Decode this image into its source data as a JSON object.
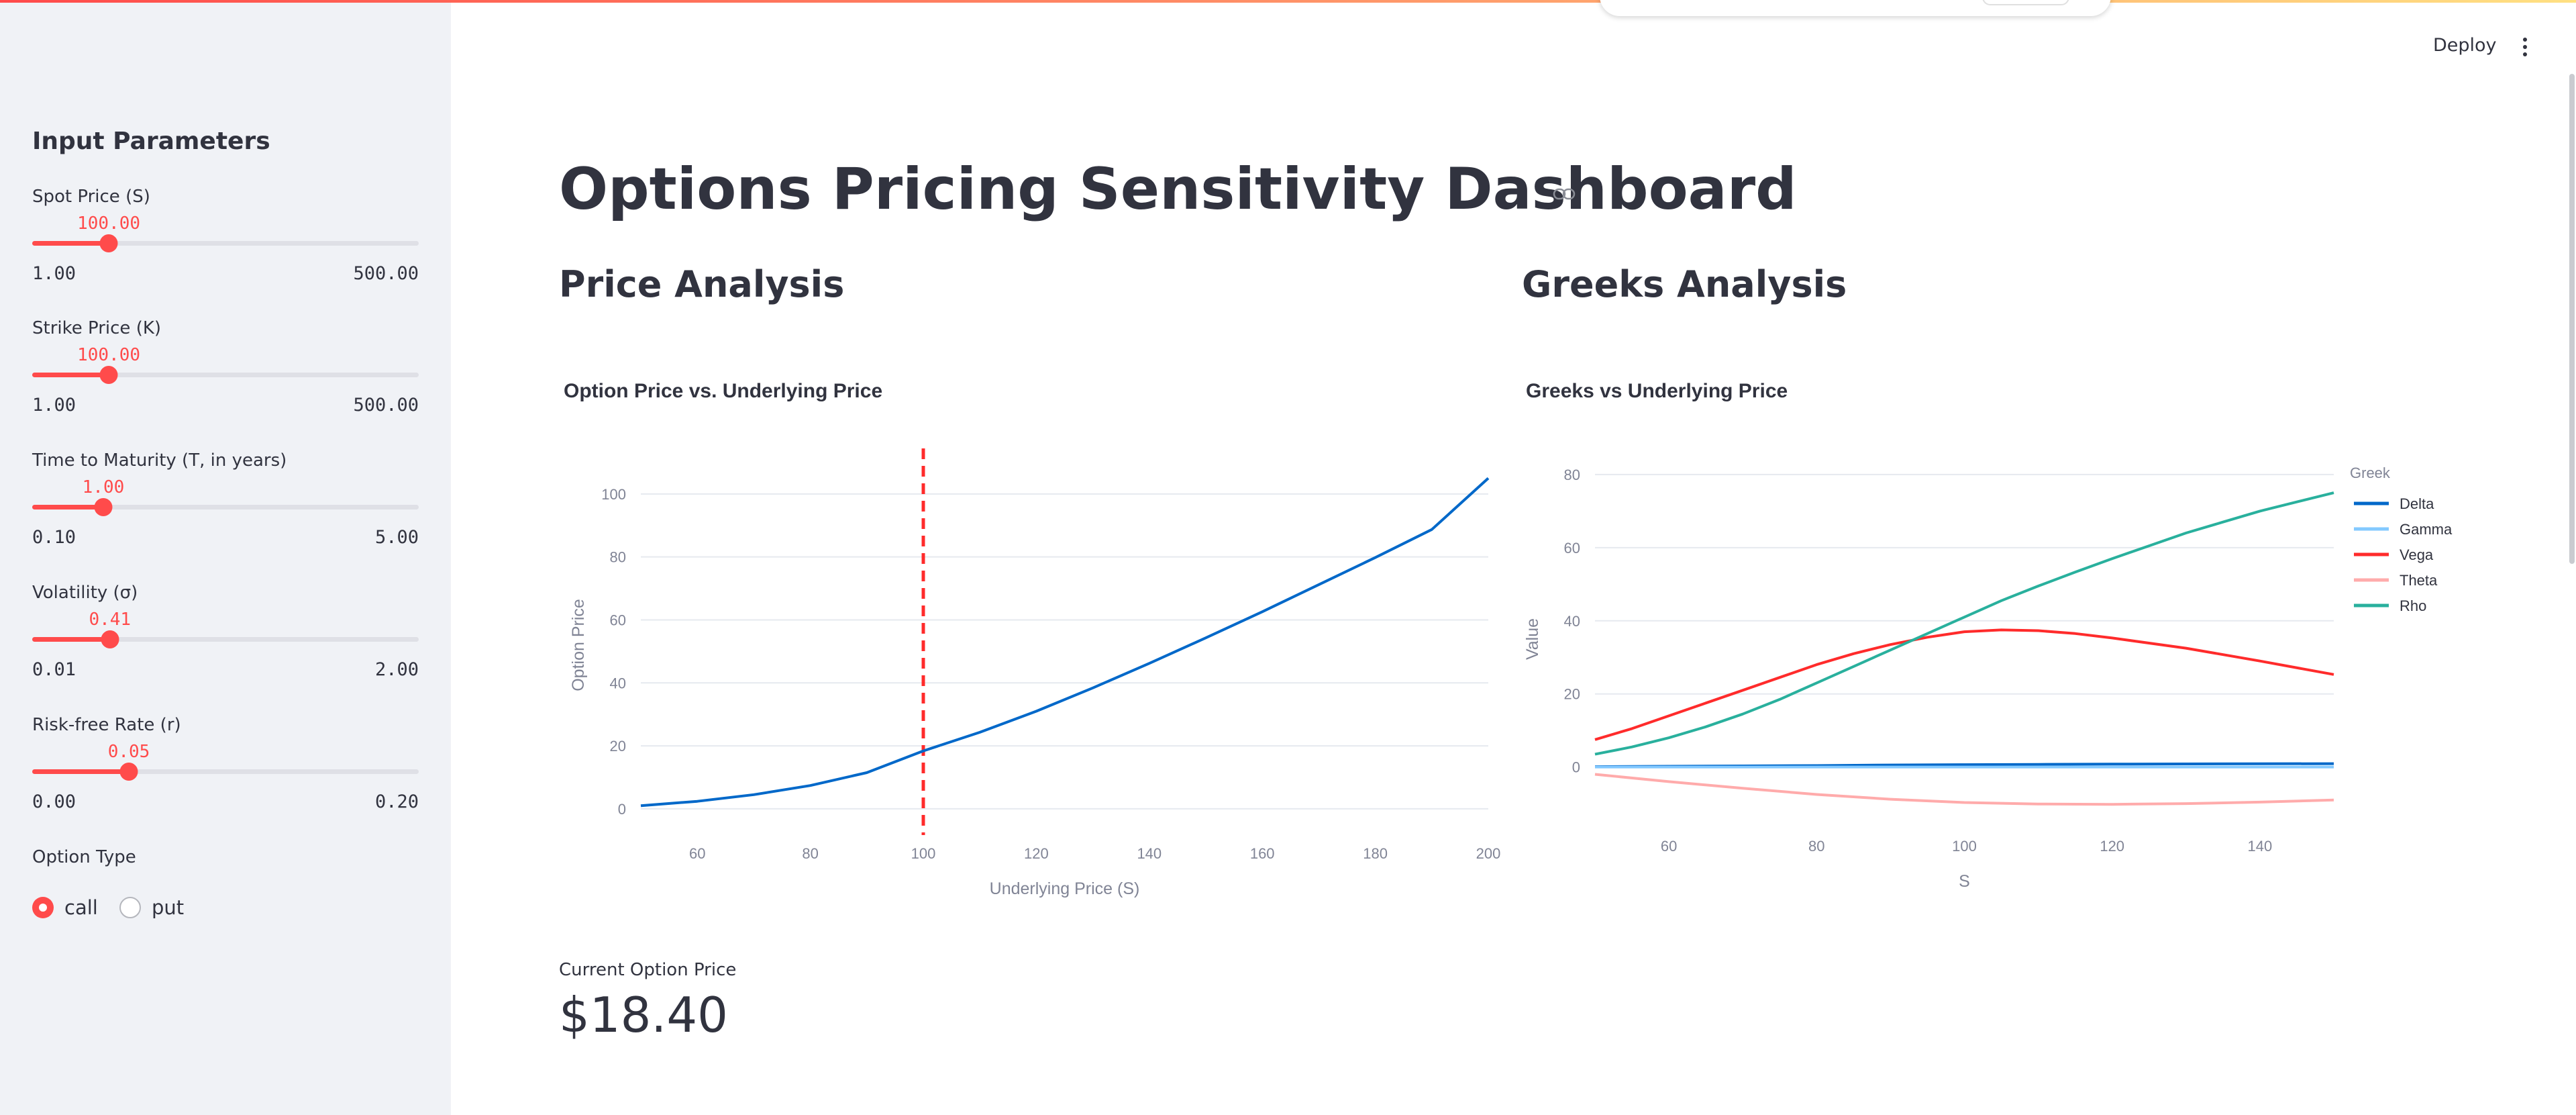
{
  "header": {
    "deploy_label": "Deploy"
  },
  "sidebar": {
    "title": "Input Parameters",
    "params": [
      {
        "label": "Spot Price (S)",
        "value": "100.00",
        "min": "1.00",
        "max": "500.00",
        "fraction": 0.198
      },
      {
        "label": "Strike Price (K)",
        "value": "100.00",
        "min": "1.00",
        "max": "500.00",
        "fraction": 0.198
      },
      {
        "label": "Time to Maturity (T, in years)",
        "value": "1.00",
        "min": "0.10",
        "max": "5.00",
        "fraction": 0.184
      },
      {
        "label": "Volatility (σ)",
        "value": "0.41",
        "min": "0.01",
        "max": "2.00",
        "fraction": 0.201
      },
      {
        "label": "Risk-free Rate (r)",
        "value": "0.05",
        "min": "0.00",
        "max": "0.20",
        "fraction": 0.25
      }
    ],
    "option_type": {
      "label": "Option Type",
      "options": [
        "call",
        "put"
      ],
      "selected": "call"
    }
  },
  "main": {
    "title": "Options Pricing Sensitivity Dashboard",
    "price_section": "Price Analysis",
    "greeks_section": "Greeks Analysis",
    "metric": {
      "label": "Current Option Price",
      "value": "$18.40"
    }
  },
  "chart_data": [
    {
      "type": "line",
      "title": "Option Price vs. Underlying Price",
      "xlabel": "Underlying Price (S)",
      "ylabel": "Option Price",
      "xlim": [
        50,
        200
      ],
      "ylim": [
        -3,
        107
      ],
      "xticks": [
        60,
        80,
        100,
        120,
        140,
        160,
        180,
        200
      ],
      "yticks": [
        0,
        20,
        40,
        60,
        80,
        100
      ],
      "grid": true,
      "series": [
        {
          "color": "#0068c9",
          "x": [
            50,
            60,
            70,
            80,
            90,
            100,
            110,
            120,
            130,
            140,
            150,
            160,
            170,
            180,
            190,
            200
          ],
          "y": [
            1.0,
            2.4,
            4.5,
            7.4,
            11.5,
            18.4,
            24.3,
            31.0,
            38.4,
            46.2,
            54.3,
            62.6,
            71.2,
            79.8,
            88.7,
            105
          ]
        }
      ],
      "vline": {
        "x": 100,
        "color": "#ff2b2b",
        "style": "dashed"
      }
    },
    {
      "type": "line",
      "title": "Greeks vs Underlying Price",
      "xlabel": "S",
      "ylabel": "Value",
      "xlim": [
        50,
        150
      ],
      "ylim": [
        -12,
        82
      ],
      "xticks": [
        60,
        80,
        100,
        120,
        140
      ],
      "yticks": [
        0,
        20,
        40,
        60,
        80
      ],
      "grid": true,
      "legend_title": "Greek",
      "legend_position": "right",
      "series": [
        {
          "name": "Delta",
          "color": "#0068c9",
          "x": [
            50,
            60,
            70,
            80,
            90,
            100,
            110,
            120,
            130,
            140,
            150
          ],
          "y": [
            0.1,
            0.2,
            0.3,
            0.4,
            0.55,
            0.65,
            0.73,
            0.8,
            0.85,
            0.89,
            0.92
          ]
        },
        {
          "name": "Gamma",
          "color": "#83c9ff",
          "x": [
            50,
            60,
            70,
            80,
            90,
            100,
            110,
            120,
            130,
            140,
            150
          ],
          "y": [
            0.01,
            0.01,
            0.01,
            0.01,
            0.01,
            0.01,
            0.01,
            0.01,
            0.01,
            0.01,
            0.01
          ]
        },
        {
          "name": "Vega",
          "color": "#ff2b2b",
          "x": [
            50,
            55,
            60,
            65,
            70,
            75,
            80,
            85,
            90,
            95,
            100,
            105,
            110,
            115,
            120,
            130,
            140,
            150
          ],
          "y": [
            7.5,
            10.5,
            14,
            17.5,
            21,
            24.5,
            28,
            31,
            33.5,
            35.5,
            37,
            37.5,
            37.3,
            36.5,
            35.3,
            32.5,
            29,
            25.3
          ]
        },
        {
          "name": "Theta",
          "color": "#ffabab",
          "x": [
            50,
            60,
            70,
            80,
            90,
            100,
            110,
            120,
            130,
            140,
            150
          ],
          "y": [
            -2,
            -4,
            -5.8,
            -7.5,
            -8.8,
            -9.7,
            -10.1,
            -10.2,
            -10.0,
            -9.6,
            -9.0
          ]
        },
        {
          "name": "Rho",
          "color": "#29b09d",
          "x": [
            50,
            55,
            60,
            65,
            70,
            75,
            80,
            85,
            90,
            95,
            100,
            105,
            110,
            115,
            120,
            125,
            130,
            135,
            140,
            145,
            150
          ],
          "y": [
            3.5,
            5.5,
            8,
            11,
            14.5,
            18.5,
            23,
            27.5,
            32,
            36.5,
            41,
            45.5,
            49.5,
            53.3,
            57,
            60.5,
            64,
            67,
            70,
            72.5,
            75
          ]
        }
      ]
    }
  ]
}
